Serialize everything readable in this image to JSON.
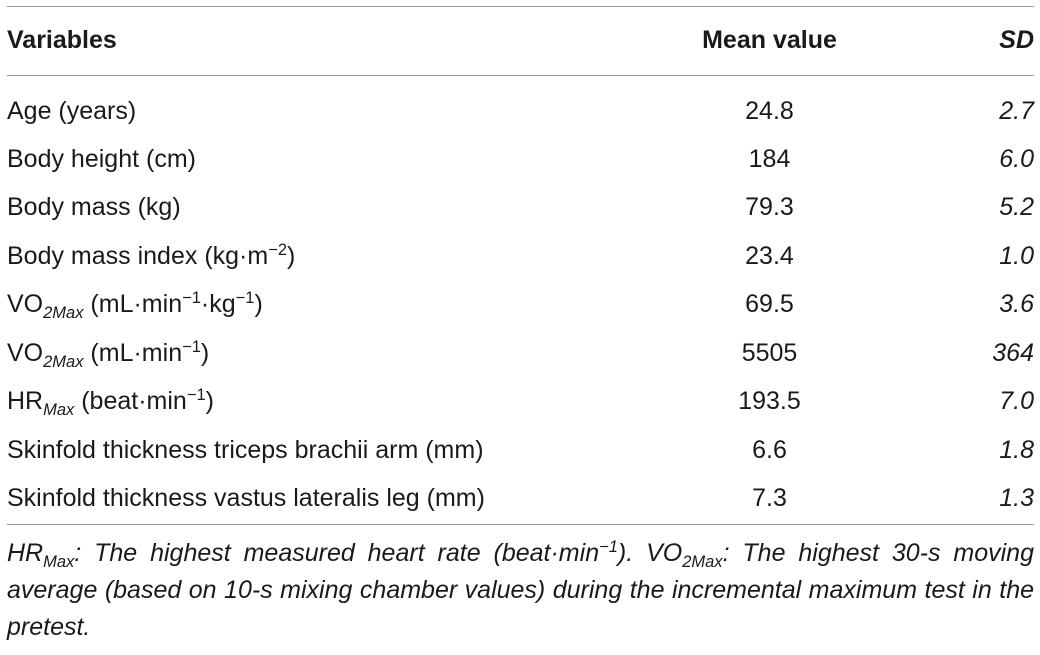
{
  "table": {
    "headers": {
      "variables": "Variables",
      "mean": "Mean value",
      "sd": "SD"
    },
    "rows": [
      {
        "label": "Age (years)",
        "mean": "24.8",
        "sd": "2.7"
      },
      {
        "label": "Body height (cm)",
        "mean": "184",
        "sd": "6.0"
      },
      {
        "label": "Body mass (kg)",
        "mean": "79.3",
        "sd": "5.2"
      },
      {
        "label_pre": "Body mass index (kg·m",
        "label_sup": "−2",
        "label_post": ")",
        "mean": "23.4",
        "sd": "1.0"
      },
      {
        "label_pre": "VO",
        "label_sub": "2Max",
        "label_mid": " (mL·min",
        "label_sup": "−1",
        "label_mid2": "·kg",
        "label_sup2": "−1",
        "label_post": ")",
        "mean": "69.5",
        "sd": "3.6"
      },
      {
        "label_pre": "VO",
        "label_sub": "2Max",
        "label_mid": " (mL·min",
        "label_sup": "−1",
        "label_post": ")",
        "mean": "5505",
        "sd": "364"
      },
      {
        "label_pre": "HR",
        "label_sub": "Max",
        "label_mid": " (beat·min",
        "label_sup": "−1",
        "label_post": ")",
        "mean": "193.5",
        "sd": "7.0"
      },
      {
        "label": "Skinfold thickness triceps brachii arm (mm)",
        "mean": "6.6",
        "sd": "1.8"
      },
      {
        "label": "Skinfold thickness vastus lateralis leg (mm)",
        "mean": "7.3",
        "sd": "1.3"
      }
    ]
  },
  "footnote": {
    "hr": "HR",
    "hr_sub": "Max",
    "hr_text": ": The highest measured heart rate (beat·min",
    "hr_sup": "−1",
    "hr_close": "). ",
    "vo": "VO",
    "vo_sub": "2Max",
    "vo_text": ": The highest 30-s moving average (based on 10-s mixing chamber values) during the incremental maximum test in the pretest."
  }
}
